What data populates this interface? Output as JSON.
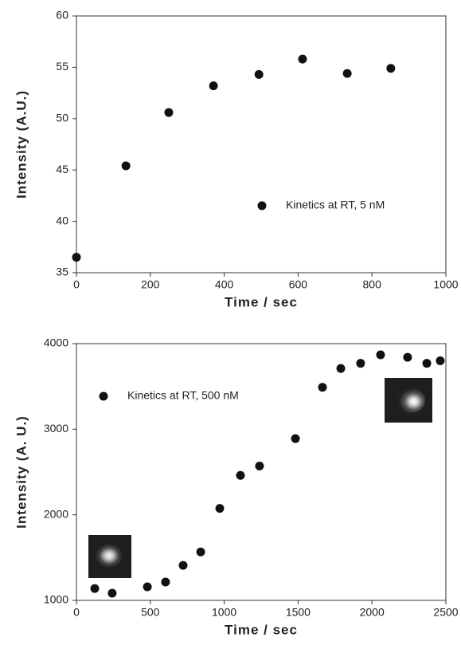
{
  "chart_data": [
    {
      "type": "scatter",
      "xlabel": "Time / sec",
      "ylabel": "Intensity (A.U.)",
      "series": [
        {
          "name": "Kinetics at RT, 5 nM",
          "color": "#111111",
          "x": [
            0,
            134,
            250,
            371,
            494,
            612,
            733,
            851
          ],
          "values": [
            36.5,
            45.4,
            50.6,
            53.2,
            54.3,
            55.8,
            54.4,
            54.9
          ]
        }
      ],
      "xlim": [
        0,
        1000
      ],
      "xticks": [
        0,
        200,
        400,
        600,
        800,
        1000
      ],
      "ylim": [
        35,
        60
      ],
      "yticks": [
        35,
        40,
        45,
        50,
        55,
        60
      ]
    },
    {
      "type": "scatter",
      "xlabel": "Time / sec",
      "ylabel": "Intensity (A. U.)",
      "series": [
        {
          "name": "Kinetics at RT, 500 nM",
          "color": "#111111",
          "x": [
            124,
            242,
            480,
            603,
            722,
            841,
            970,
            1110,
            1239,
            1482,
            1665,
            1789,
            1923,
            2058,
            2241,
            2371,
            2462
          ],
          "values": [
            1139,
            1084,
            1158,
            1214,
            1409,
            1566,
            2075,
            2460,
            2570,
            2890,
            3490,
            3710,
            3770,
            3870,
            3840,
            3770,
            3800
          ]
        }
      ],
      "xlim": [
        0,
        2500
      ],
      "xticks": [
        0,
        500,
        1000,
        1500,
        2000,
        2500
      ],
      "ylim": [
        1000,
        4000
      ],
      "yticks": [
        1000,
        2000,
        3000,
        4000
      ]
    }
  ]
}
